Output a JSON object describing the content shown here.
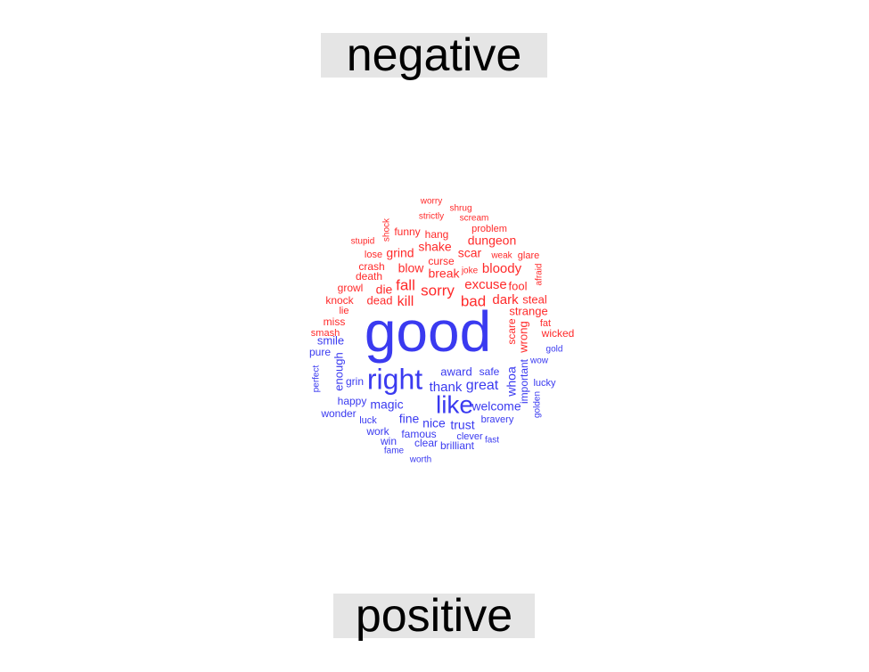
{
  "chart_data": {
    "type": "wordcloud",
    "groups": [
      {
        "name": "negative",
        "color": "#ff2a2a",
        "words": [
          "worry",
          "shrug",
          "strictly",
          "scream",
          "shock",
          "funny",
          "hang",
          "problem",
          "stupid",
          "shake",
          "dungeon",
          "lose",
          "grind",
          "scar",
          "glare",
          "weak",
          "curse",
          "crash",
          "blow",
          "bloody",
          "joke",
          "break",
          "death",
          "afraid",
          "fall",
          "excuse",
          "fool",
          "growl",
          "die",
          "sorry",
          "knock",
          "kill",
          "bad",
          "dark",
          "steal",
          "dead",
          "lie",
          "strange",
          "miss",
          "fat",
          "scare",
          "smash",
          "wrong",
          "wicked"
        ]
      },
      {
        "name": "positive",
        "color": "#3a3af0",
        "words": [
          "good",
          "right",
          "like",
          "smile",
          "pure",
          "gold",
          "enough",
          "wow",
          "award",
          "safe",
          "perfect",
          "great",
          "grin",
          "thank",
          "whoa",
          "important",
          "lucky",
          "golden",
          "happy",
          "magic",
          "welcome",
          "wonder",
          "fine",
          "luck",
          "bravery",
          "nice",
          "trust",
          "work",
          "famous",
          "clever",
          "fast",
          "win",
          "clear",
          "brilliant",
          "fame",
          "worth"
        ]
      }
    ]
  }
}
